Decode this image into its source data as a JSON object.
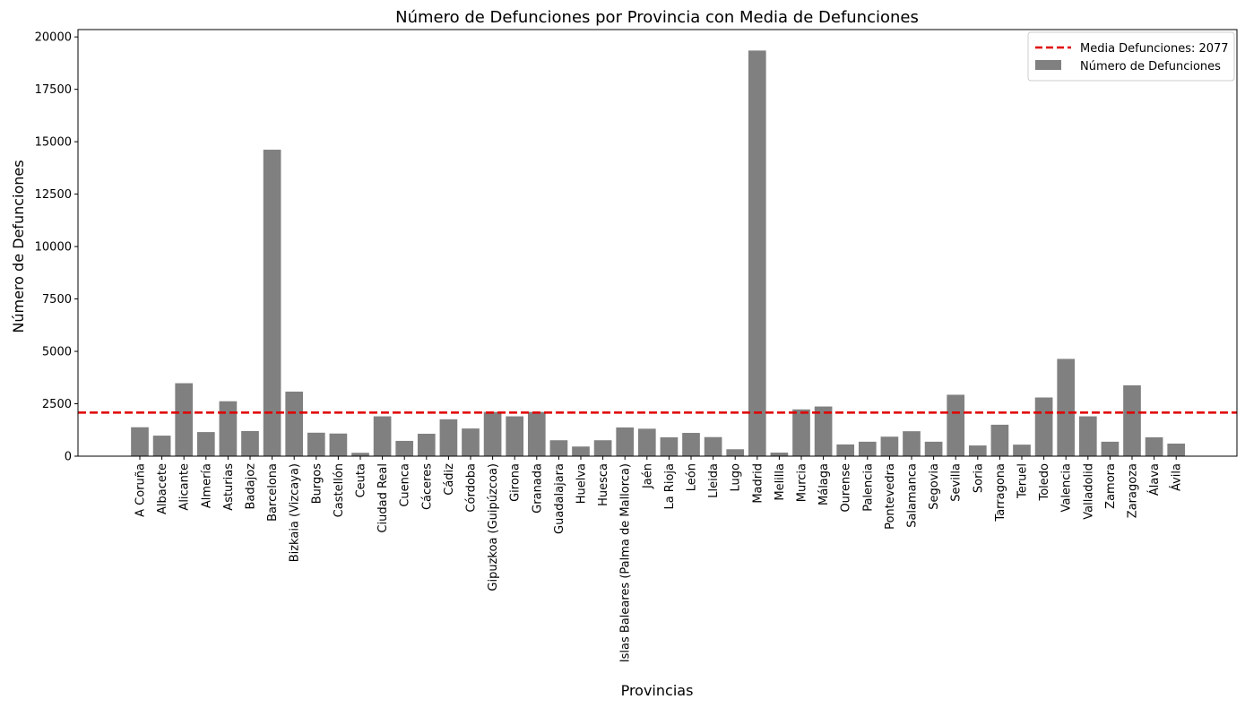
{
  "chart_data": {
    "type": "bar",
    "title": "Número de Defunciones por Provincia con Media de Defunciones",
    "xlabel": "Provincias",
    "ylabel": "Número de Defunciones",
    "ylim": [
      0,
      20350
    ],
    "yticks": [
      0,
      2500,
      5000,
      7500,
      10000,
      12500,
      15000,
      17500,
      20000
    ],
    "grid": false,
    "legend_placement": "top-right",
    "bar_color": "#808080",
    "mean_line": {
      "value": 2077,
      "color": "#e00000",
      "label": "Media Defunciones: 2077",
      "style": "dashed"
    },
    "series": [
      {
        "name": "Número de Defunciones"
      }
    ],
    "categories": [
      "A Coruña",
      "Albacete",
      "Alicante",
      "Almería",
      "Asturias",
      "Badajoz",
      "Barcelona",
      "Bizkaia (Vizcaya)",
      "Burgos",
      "Castellón",
      "Ceuta",
      "Ciudad Real",
      "Cuenca",
      "Cáceres",
      "Cádiz",
      "Córdoba",
      "Gipuzkoa (Guipúzcoa)",
      "Girona",
      "Granada",
      "Guadalajara",
      "Huelva",
      "Huesca",
      "Islas Baleares (Palma de Mallorca)",
      "Jaén",
      "La Rioja",
      "León",
      "Lleida",
      "Lugo",
      "Madrid",
      "Melilla",
      "Murcia",
      "Málaga",
      "Ourense",
      "Palencia",
      "Pontevedra",
      "Salamanca",
      "Segovia",
      "Sevilla",
      "Soria",
      "Tarragona",
      "Teruel",
      "Toledo",
      "Valencia",
      "Valladolid",
      "Zamora",
      "Zaragoza",
      "Álava",
      "Ávila"
    ],
    "values": [
      1380,
      980,
      3480,
      1150,
      2620,
      1200,
      14620,
      3080,
      1120,
      1080,
      160,
      1900,
      730,
      1070,
      1760,
      1320,
      2110,
      1900,
      2110,
      760,
      460,
      760,
      1370,
      1310,
      900,
      1110,
      910,
      330,
      19350,
      170,
      2230,
      2370,
      560,
      690,
      930,
      1190,
      690,
      2930,
      510,
      1500,
      550,
      2800,
      4640,
      1900,
      690,
      3380,
      900,
      600
    ]
  }
}
